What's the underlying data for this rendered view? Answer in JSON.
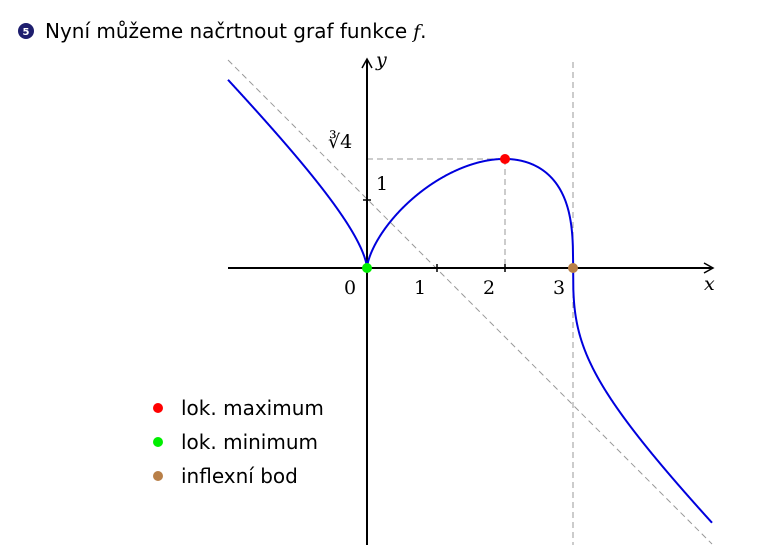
{
  "header": {
    "bullet": "5",
    "text": "Nyní můžeme načrtnout graf funkce",
    "math": "f",
    "end": "."
  },
  "graph": {
    "x_label": "x",
    "y_label": "y",
    "x_ticks": [
      "0",
      "1",
      "2",
      "3"
    ],
    "y_ticks": [
      "1",
      "∛4"
    ]
  },
  "legend": [
    {
      "label": "lok. maximum",
      "color": "#ff0000"
    },
    {
      "label": "lok. minimum",
      "color": "#00ee00"
    },
    {
      "label": "inflexní bod",
      "color": "#b87f48"
    }
  ]
}
